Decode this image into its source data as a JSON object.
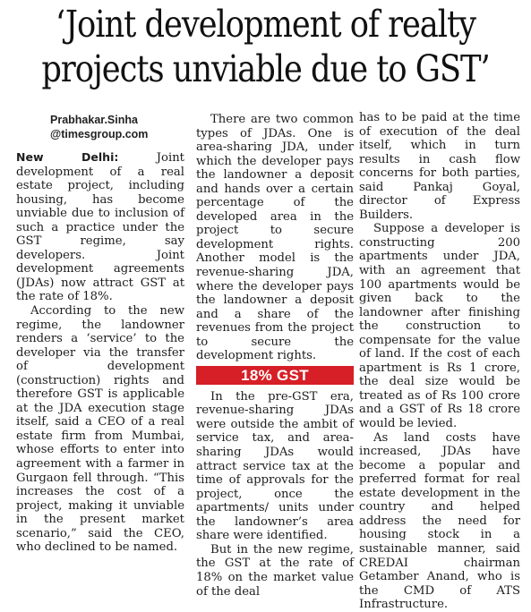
{
  "headline": {
    "line1": "‘Joint development of realty",
    "line2": "projects unviable due to GST’"
  },
  "byline": {
    "name": "Prabhakar.Sinha",
    "email": "@timesgroup.com"
  },
  "dateline": "New Delhi:",
  "col1": {
    "p1_rest": " Joint development of a real estate project, including housing, has become unviable due to inclusion of such a practice under the GST regime, say developers. Joint development agreements (JDAs) now attract GST at the rate of 18%.",
    "p2": "According to the new regime, the landowner renders a ‘service’ to the developer via the transfer of development (construction) rights and therefore GST is applicable at the JDA execution stage itself, said a CEO of a real estate firm from Mumbai, whose efforts to enter into agreement with a farmer in Gurgaon fell through. “This increases the cost of a project, making it unviable in the present market scenario,” said the CEO, who declined to be named."
  },
  "col2": {
    "p1": "There are two common types of JDAs. One is area-sharing JDA, under which the developer pays the landowner a deposit and hands over a certain percentage of the developed area in the project to secure development rights. Another model is the revenue-sharing JDA, where the developer pays the landowner a deposit and a share of the revenues from the project to secure the development rights.",
    "subhead": "18% GST",
    "p2": "In the pre-GST era, revenue-sharing JDAs were outside the ambit of service tax, and area-sharing JDAs would attract service tax at the time of approvals for the project, once the apartments/ units under the landowner’s area share were identified.",
    "p3": "But in the new regime, the GST at the rate of 18% on the market value of the deal"
  },
  "col3": {
    "p1": "has to be paid at the time of execution of the deal itself, which in turn results in cash flow concerns for both parties, said Pankaj Goyal, director of Express Builders.",
    "p2": "Suppose a developer is constructing 200 apartments under JDA, with an agreement that 100 apartments would be given back to the landowner after finishing the construction to compensate for the value of land. If the cost of each apartment is Rs 1 crore, the deal size would be treated as of Rs 100 crore and a GST of Rs 18 crore would be levied.",
    "p3": "As land costs have increased, JDAs have become a popular and preferred format for real estate development in the country and helped address the need for housing stock in a sustainable manner, said CREDAI chairman Getamber Anand, who is the CMD of ATS Infrastructure."
  }
}
